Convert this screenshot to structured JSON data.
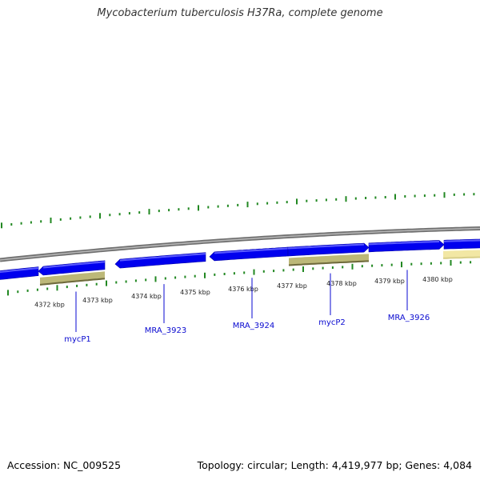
{
  "title": "Mycobacterium tuberculosis H37Ra, complete genome",
  "footer": {
    "accession": "Accession: NC_009525",
    "topology": "Topology: circular; Length: 4,419,977 bp; Genes: 4,084"
  },
  "colors": {
    "backbone": "#888888",
    "cds": "#0000ee",
    "cds_top": "#5c5cff",
    "gene_olive": "#bcb878",
    "gene_olive_dark": "#6e6a3c",
    "gene_pale": "#f2e7a4",
    "tick": "#228822",
    "label_blue": "#0a0ad0"
  },
  "kbp_labels": [
    "4372 kbp",
    "4373 kbp",
    "4374 kbp",
    "4375 kbp",
    "4376 kbp",
    "4377 kbp",
    "4378 kbp",
    "4379 kbp",
    "4380 kbp"
  ],
  "gene_labels": [
    "mycP1",
    "MRA_3923",
    "MRA_3924",
    "mycP2",
    "MRA_3926"
  ]
}
